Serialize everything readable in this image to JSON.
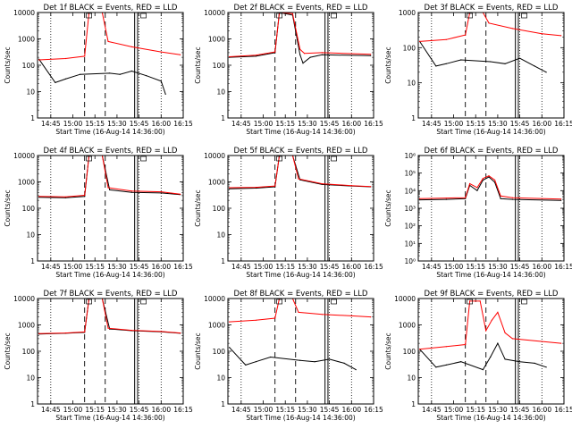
{
  "colors": {
    "events": "#000000",
    "lld": "#ff0000",
    "axis": "#000000"
  },
  "x_tick_labels": [
    "14:45",
    "15:00",
    "15:15",
    "15:30",
    "15:45",
    "16:00",
    "16:15"
  ],
  "x_tick_hours": [
    14.75,
    15.0,
    15.25,
    15.5,
    15.75,
    16.0,
    16.25
  ],
  "chart_data": [
    {
      "type": "line",
      "title": "Det 1f BLACK = Events, RED = LLD",
      "xlabel": "Start Time (16-Aug-14 14:36:00)",
      "ylabel": "Counts/sec",
      "xlim": [
        "14:36",
        "16:15"
      ],
      "ylim": [
        1,
        10000
      ],
      "y_tick_labels": [
        "1",
        "10",
        "100",
        "1000",
        "10000"
      ],
      "y_tick_values": [
        1,
        10,
        100,
        1000,
        10000
      ],
      "dotted_lines": [
        "14:45",
        "15:45",
        "16:00"
      ],
      "dashed_lines": [
        "15:08",
        "15:22"
      ],
      "solid_lines": [
        "15:42",
        "15:44"
      ],
      "flare_rise": "15:11",
      "flare_fall": "15:20",
      "box_markers": [
        "15:11",
        "15:48"
      ],
      "series": [
        {
          "name": "Events",
          "x": [
            "14:37",
            "14:48",
            "14:55",
            "15:05",
            "15:25",
            "15:32",
            "15:40",
            "15:50",
            "16:00",
            "16:03"
          ],
          "values": [
            170,
            22,
            30,
            45,
            50,
            45,
            60,
            40,
            25,
            8
          ]
        },
        {
          "name": "LLD",
          "x": [
            "14:37",
            "14:55",
            "15:08",
            "15:11",
            "15:20",
            "15:24",
            "15:40",
            "16:00",
            "16:13"
          ],
          "values": [
            160,
            180,
            220,
            10000,
            10000,
            800,
            500,
            320,
            250
          ]
        }
      ]
    },
    {
      "type": "line",
      "title": "Det 2f BLACK = Events, RED = LLD",
      "xlabel": "Start Time (16-Aug-14 14:36:00)",
      "ylabel": "Counts/sec",
      "xlim": [
        "14:36",
        "16:15"
      ],
      "ylim": [
        1,
        10000
      ],
      "y_tick_labels": [
        "1",
        "10",
        "100",
        "1000",
        "10000"
      ],
      "y_tick_values": [
        1,
        10,
        100,
        1000,
        10000
      ],
      "dotted_lines": [
        "14:45",
        "15:45",
        "16:00"
      ],
      "dashed_lines": [
        "15:08",
        "15:22"
      ],
      "solid_lines": [
        "15:42",
        "15:44"
      ],
      "flare_rise": "15:11",
      "flare_fall": "15:20",
      "box_markers": [
        "15:11",
        "15:48"
      ],
      "series": [
        {
          "name": "Events",
          "x": [
            "14:37",
            "14:55",
            "15:08",
            "15:11",
            "15:20",
            "15:25",
            "15:27",
            "15:32",
            "15:40",
            "16:13"
          ],
          "values": [
            200,
            220,
            300,
            10000,
            8000,
            250,
            120,
            200,
            250,
            230
          ]
        },
        {
          "name": "LLD",
          "x": [
            "14:37",
            "14:55",
            "15:08",
            "15:11",
            "15:20",
            "15:25",
            "15:28",
            "15:40",
            "16:13"
          ],
          "values": [
            210,
            240,
            320,
            10000,
            9000,
            400,
            280,
            300,
            260
          ]
        }
      ]
    },
    {
      "type": "line",
      "title": "Det 3f BLACK = Events, RED = LLD",
      "xlabel": "Start Time (16-Aug-14 14:36:00)",
      "ylabel": "Counts/sec",
      "xlim": [
        "14:36",
        "16:15"
      ],
      "ylim": [
        1,
        1000
      ],
      "y_tick_labels": [
        "1",
        "10",
        "100",
        "1000"
      ],
      "y_tick_values": [
        1,
        10,
        100,
        1000
      ],
      "dotted_lines": [
        "14:45",
        "15:45",
        "16:00"
      ],
      "dashed_lines": [
        "15:08",
        "15:22"
      ],
      "solid_lines": [
        "15:42",
        "15:44"
      ],
      "flare_rise": "15:11",
      "flare_fall": "15:20",
      "box_markers": [
        "15:11",
        "15:48"
      ],
      "series": [
        {
          "name": "Events",
          "x": [
            "14:37",
            "14:48",
            "14:55",
            "15:05",
            "15:25",
            "15:35",
            "15:45",
            "15:55",
            "16:03"
          ],
          "values": [
            150,
            30,
            35,
            45,
            40,
            35,
            50,
            30,
            20
          ]
        },
        {
          "name": "LLD",
          "x": [
            "14:37",
            "14:55",
            "15:08",
            "15:11",
            "15:20",
            "15:24",
            "15:40",
            "16:00",
            "16:13"
          ],
          "values": [
            150,
            170,
            230,
            1000,
            1000,
            500,
            350,
            250,
            220
          ]
        }
      ]
    },
    {
      "type": "line",
      "title": "Det 4f BLACK = Events, RED = LLD",
      "xlabel": "Start Time (16-Aug-14 14:36:00)",
      "ylabel": "Counts/sec",
      "xlim": [
        "14:36",
        "16:15"
      ],
      "ylim": [
        1,
        10000
      ],
      "y_tick_labels": [
        "1",
        "10",
        "100",
        "1000",
        "10000"
      ],
      "y_tick_values": [
        1,
        10,
        100,
        1000,
        10000
      ],
      "dotted_lines": [
        "14:45",
        "15:45",
        "16:00"
      ],
      "dashed_lines": [
        "15:08",
        "15:22"
      ],
      "solid_lines": [
        "15:42",
        "15:44"
      ],
      "flare_rise": "15:11",
      "flare_fall": "15:20",
      "box_markers": [
        "15:11",
        "15:48"
      ],
      "series": [
        {
          "name": "Events",
          "x": [
            "14:37",
            "14:55",
            "15:08",
            "15:11",
            "15:20",
            "15:25",
            "15:40",
            "16:00",
            "16:13"
          ],
          "values": [
            260,
            250,
            280,
            10000,
            10000,
            500,
            400,
            380,
            330
          ]
        },
        {
          "name": "LLD",
          "x": [
            "14:37",
            "14:55",
            "15:08",
            "15:11",
            "15:20",
            "15:24",
            "15:40",
            "16:00",
            "16:13"
          ],
          "values": [
            280,
            270,
            310,
            10000,
            10000,
            600,
            450,
            420,
            340
          ]
        }
      ]
    },
    {
      "type": "line",
      "title": "Det 5f BLACK = Events, RED = LLD",
      "xlabel": "Start Time (16-Aug-14 14:36:00)",
      "ylabel": "Counts/sec",
      "xlim": [
        "14:36",
        "16:15"
      ],
      "ylim": [
        1,
        10000
      ],
      "y_tick_labels": [
        "1",
        "10",
        "100",
        "1000",
        "10000"
      ],
      "y_tick_values": [
        1,
        10,
        100,
        1000,
        10000
      ],
      "dotted_lines": [
        "14:45",
        "15:45",
        "16:00"
      ],
      "dashed_lines": [
        "15:08",
        "15:22"
      ],
      "solid_lines": [
        "15:42",
        "15:44"
      ],
      "flare_rise": "15:11",
      "flare_fall": "15:20",
      "box_markers": [
        "15:11",
        "15:48"
      ],
      "series": [
        {
          "name": "Events",
          "x": [
            "14:37",
            "14:55",
            "15:08",
            "15:11",
            "15:20",
            "15:25",
            "15:40",
            "16:00",
            "16:13"
          ],
          "values": [
            550,
            580,
            650,
            10000,
            10000,
            1200,
            800,
            700,
            650
          ]
        },
        {
          "name": "LLD",
          "x": [
            "14:37",
            "14:55",
            "15:08",
            "15:11",
            "15:20",
            "15:24",
            "15:40",
            "16:00",
            "16:13"
          ],
          "values": [
            600,
            620,
            700,
            10000,
            10000,
            1300,
            850,
            720,
            660
          ]
        }
      ]
    },
    {
      "type": "line",
      "title": "Det 6f BLACK = Events, RED = LLD",
      "xlabel": "Start Time (16-Aug-14 14:36:00)",
      "ylabel": "Counts/sec",
      "xlim": [
        "14:36",
        "16:15"
      ],
      "ylim": [
        1,
        1000000
      ],
      "y_tick_labels": [
        "10⁰",
        "10¹",
        "10²",
        "10³",
        "10⁴",
        "10⁵",
        "10⁶"
      ],
      "y_tick_values": [
        1,
        10,
        100,
        1000,
        10000,
        100000,
        1000000
      ],
      "dotted_lines": [
        "14:45",
        "15:45",
        "16:00"
      ],
      "dashed_lines": [
        "15:08",
        "15:22"
      ],
      "solid_lines": [
        "15:42",
        "15:44"
      ],
      "flare_rise": "15:11",
      "flare_fall": "15:20",
      "box_markers": [],
      "series": [
        {
          "name": "Events",
          "x": [
            "14:37",
            "14:55",
            "15:08",
            "15:11",
            "15:16",
            "15:20",
            "15:24",
            "15:28",
            "15:32",
            "15:40",
            "16:13"
          ],
          "values": [
            3000,
            3200,
            3500,
            20000,
            10000,
            40000,
            60000,
            30000,
            3500,
            3200,
            2800
          ]
        },
        {
          "name": "LLD",
          "x": [
            "14:37",
            "14:55",
            "15:08",
            "15:11",
            "15:16",
            "15:20",
            "15:24",
            "15:28",
            "15:32",
            "15:40",
            "16:13"
          ],
          "values": [
            3500,
            3800,
            4000,
            25000,
            15000,
            50000,
            70000,
            40000,
            5000,
            4000,
            3300
          ]
        }
      ]
    },
    {
      "type": "line",
      "title": "Det 7f BLACK = Events, RED = LLD",
      "xlabel": "Start Time (16-Aug-14 14:36:00)",
      "ylabel": "Counts/sec",
      "xlim": [
        "14:36",
        "16:15"
      ],
      "ylim": [
        1,
        10000
      ],
      "y_tick_labels": [
        "1",
        "10",
        "100",
        "1000",
        "10000"
      ],
      "y_tick_values": [
        1,
        10,
        100,
        1000,
        10000
      ],
      "dotted_lines": [
        "14:45",
        "15:45",
        "16:00"
      ],
      "dashed_lines": [
        "15:08",
        "15:22"
      ],
      "solid_lines": [
        "15:42",
        "15:44"
      ],
      "flare_rise": "15:11",
      "flare_fall": "15:20",
      "box_markers": [
        "15:11",
        "15:48"
      ],
      "series": [
        {
          "name": "Events",
          "x": [
            "14:37",
            "14:55",
            "15:08",
            "15:11",
            "15:20",
            "15:25",
            "15:40",
            "16:00",
            "16:13"
          ],
          "values": [
            450,
            480,
            520,
            10000,
            10000,
            700,
            600,
            550,
            480
          ]
        },
        {
          "name": "LLD",
          "x": [
            "14:37",
            "14:55",
            "15:08",
            "15:11",
            "15:20",
            "15:24",
            "15:40",
            "16:00",
            "16:13"
          ],
          "values": [
            470,
            490,
            540,
            10000,
            10000,
            750,
            620,
            560,
            490
          ]
        }
      ]
    },
    {
      "type": "line",
      "title": "Det 8f BLACK = Events, RED = LLD",
      "xlabel": "Start Time (16-Aug-14 14:36:00)",
      "ylabel": "Counts/sec",
      "xlim": [
        "14:36",
        "16:15"
      ],
      "ylim": [
        1,
        10000
      ],
      "y_tick_labels": [
        "1",
        "10",
        "100",
        "1000",
        "10000"
      ],
      "y_tick_values": [
        1,
        10,
        100,
        1000,
        10000
      ],
      "dotted_lines": [
        "14:45",
        "15:45",
        "16:00"
      ],
      "dashed_lines": [
        "15:08",
        "15:22"
      ],
      "solid_lines": [
        "15:42",
        "15:44"
      ],
      "flare_rise": "15:11",
      "flare_fall": "15:20",
      "box_markers": [
        "15:11",
        "15:48"
      ],
      "series": [
        {
          "name": "Events",
          "x": [
            "14:37",
            "14:48",
            "14:55",
            "15:05",
            "15:25",
            "15:35",
            "15:45",
            "15:55",
            "16:03"
          ],
          "values": [
            140,
            30,
            40,
            60,
            45,
            40,
            50,
            35,
            20
          ]
        },
        {
          "name": "LLD",
          "x": [
            "14:37",
            "14:55",
            "15:08",
            "15:11",
            "15:20",
            "15:24",
            "15:40",
            "16:00",
            "16:13"
          ],
          "values": [
            1300,
            1500,
            1800,
            10000,
            10000,
            3000,
            2500,
            2200,
            2000
          ]
        }
      ]
    },
    {
      "type": "line",
      "title": "Det 9f BLACK = Events, RED = LLD",
      "xlabel": "Start Time (16-Aug-14 14:36:00)",
      "ylabel": "Counts/sec",
      "xlim": [
        "14:36",
        "16:15"
      ],
      "ylim": [
        1,
        10000
      ],
      "y_tick_labels": [
        "1",
        "10",
        "100",
        "1000",
        "10000"
      ],
      "y_tick_values": [
        1,
        10,
        100,
        1000,
        10000
      ],
      "dotted_lines": [
        "14:45",
        "15:45",
        "16:00"
      ],
      "dashed_lines": [
        "15:08",
        "15:22"
      ],
      "solid_lines": [
        "15:42",
        "15:44"
      ],
      "flare_rise": "15:11",
      "flare_fall": "15:20",
      "box_markers": [
        "15:11",
        "15:48"
      ],
      "series": [
        {
          "name": "Events",
          "x": [
            "14:37",
            "14:48",
            "14:55",
            "15:05",
            "15:20",
            "15:25",
            "15:30",
            "15:35",
            "15:45",
            "15:55",
            "16:03"
          ],
          "values": [
            120,
            25,
            30,
            40,
            20,
            60,
            200,
            50,
            40,
            35,
            25
          ]
        },
        {
          "name": "LLD",
          "x": [
            "14:37",
            "14:55",
            "15:08",
            "15:11",
            "15:18",
            "15:22",
            "15:26",
            "15:30",
            "15:35",
            "15:40",
            "16:13"
          ],
          "values": [
            120,
            150,
            180,
            8000,
            8000,
            600,
            1500,
            3000,
            500,
            300,
            200
          ]
        }
      ]
    }
  ]
}
